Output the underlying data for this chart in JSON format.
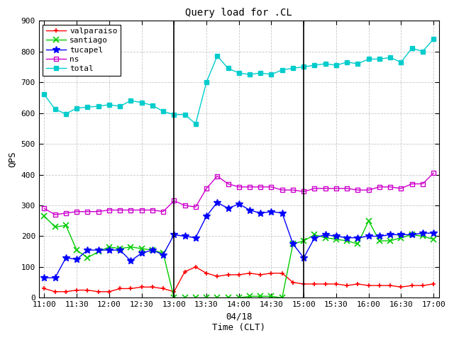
{
  "title": "Query load for .CL",
  "xlabel_main": "04/18",
  "xlabel_sub": "Time (CLT)",
  "ylabel": "QPS",
  "ylim": [
    0,
    900
  ],
  "yticks": [
    0,
    100,
    200,
    300,
    400,
    500,
    600,
    700,
    800,
    900
  ],
  "background": "#ffffff",
  "grid_color": "#c8c8c8",
  "series": {
    "valparaiso": {
      "color": "#ff0000",
      "marker": "P",
      "linewidth": 1.0,
      "markersize": 5,
      "data_x": [
        0,
        1,
        2,
        3,
        4,
        5,
        6,
        7,
        8,
        9,
        10,
        11,
        12,
        13,
        14,
        15,
        16,
        17,
        18,
        19,
        20,
        21,
        22,
        23,
        24,
        25,
        26,
        27,
        28,
        29,
        30,
        31,
        32,
        33,
        34,
        35,
        36
      ],
      "data_y": [
        30,
        20,
        20,
        25,
        25,
        20,
        20,
        30,
        30,
        35,
        35,
        30,
        20,
        85,
        100,
        80,
        70,
        75,
        75,
        80,
        75,
        80,
        80,
        50,
        45,
        45,
        45,
        45,
        40,
        45,
        40,
        40,
        40,
        35,
        40,
        40,
        45
      ]
    },
    "santiago": {
      "color": "#00cc00",
      "marker": "x",
      "linewidth": 1.0,
      "markersize": 6,
      "data_x": [
        0,
        1,
        2,
        3,
        4,
        5,
        6,
        7,
        8,
        9,
        10,
        11,
        12,
        13,
        14,
        15,
        16,
        17,
        18,
        19,
        20,
        21,
        22,
        23,
        24,
        25,
        26,
        27,
        28,
        29,
        30,
        31,
        32,
        33,
        34,
        35,
        36
      ],
      "data_y": [
        265,
        230,
        235,
        155,
        130,
        150,
        165,
        160,
        165,
        160,
        155,
        145,
        0,
        0,
        0,
        0,
        0,
        0,
        0,
        5,
        5,
        5,
        0,
        175,
        185,
        205,
        195,
        190,
        185,
        175,
        250,
        185,
        185,
        195,
        205,
        200,
        190
      ]
    },
    "tucapel": {
      "color": "#0000ff",
      "marker": "*",
      "linewidth": 1.0,
      "markersize": 7,
      "data_x": [
        0,
        1,
        2,
        3,
        4,
        5,
        6,
        7,
        8,
        9,
        10,
        11,
        12,
        13,
        14,
        15,
        16,
        17,
        18,
        19,
        20,
        21,
        22,
        23,
        24,
        25,
        26,
        27,
        28,
        29,
        30,
        31,
        32,
        33,
        34,
        35,
        36
      ],
      "data_y": [
        65,
        65,
        130,
        125,
        155,
        155,
        155,
        155,
        120,
        145,
        155,
        140,
        205,
        200,
        195,
        265,
        310,
        290,
        305,
        285,
        275,
        280,
        275,
        175,
        130,
        195,
        205,
        200,
        195,
        195,
        200,
        200,
        205,
        205,
        205,
        210,
        210
      ]
    },
    "ns": {
      "color": "#cc00cc",
      "marker": "s",
      "linewidth": 1.0,
      "markersize": 4,
      "data_x": [
        0,
        1,
        2,
        3,
        4,
        5,
        6,
        7,
        8,
        9,
        10,
        11,
        12,
        13,
        14,
        15,
        16,
        17,
        18,
        19,
        20,
        21,
        22,
        23,
        24,
        25,
        26,
        27,
        28,
        29,
        30,
        31,
        32,
        33,
        34,
        35,
        36
      ],
      "data_y": [
        290,
        270,
        275,
        280,
        280,
        280,
        285,
        285,
        285,
        285,
        285,
        280,
        315,
        300,
        295,
        355,
        395,
        370,
        360,
        360,
        360,
        360,
        350,
        350,
        345,
        355,
        355,
        355,
        355,
        350,
        350,
        360,
        360,
        355,
        370,
        370,
        405
      ]
    },
    "total": {
      "color": "#00cccc",
      "marker": "s",
      "linewidth": 1.0,
      "markersize": 5,
      "data_x": [
        0,
        1,
        2,
        3,
        4,
        5,
        6,
        7,
        8,
        9,
        10,
        11,
        12,
        13,
        14,
        15,
        16,
        17,
        18,
        19,
        20,
        21,
        22,
        23,
        24,
        25,
        26,
        27,
        28,
        29,
        30,
        31,
        32,
        33,
        34,
        35,
        36
      ],
      "data_y": [
        660,
        612,
        597,
        616,
        619,
        622,
        627,
        622,
        640,
        634,
        625,
        605,
        595,
        595,
        565,
        700,
        785,
        745,
        730,
        725,
        730,
        725,
        740,
        745,
        750,
        755,
        760,
        755,
        765,
        760,
        775,
        775,
        780,
        765,
        810,
        800,
        840
      ]
    }
  },
  "vline_x_indices": [
    12,
    24
  ],
  "xtick_positions": [
    0,
    3,
    6,
    9,
    12,
    15,
    18,
    21,
    24,
    27,
    30,
    33,
    36
  ],
  "xtick_labels": [
    "11:00",
    "11:30",
    "12:00",
    "12:30",
    "13:00",
    "13:30",
    "14:00",
    "14:30",
    "15:00",
    "15:30",
    "16:00",
    "16:30",
    "17:00"
  ]
}
